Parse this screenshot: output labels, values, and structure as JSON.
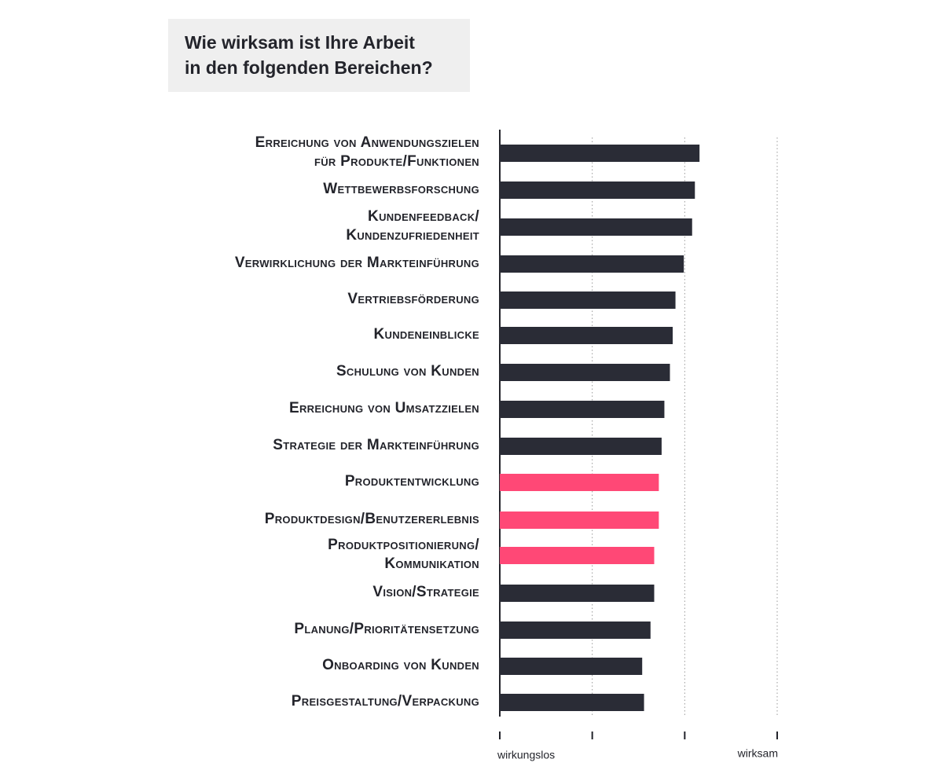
{
  "chart_data": {
    "type": "hbar",
    "title": [
      "Wie wirksam ist Ihre Arbeit",
      "in den folgenden Bereichen?"
    ],
    "categories": [
      [
        "Erreichung von Anwendungszielen",
        "für Produkte/Funktionen"
      ],
      [
        "Wettbewerbsforschung"
      ],
      [
        "Kundenfeedback/",
        "Kundenzufriedenheit"
      ],
      [
        "Verwirklichung der Markteinführung"
      ],
      [
        "Vertriebsförderung"
      ],
      [
        "Kundeneinblicke"
      ],
      [
        "Schulung von Kunden"
      ],
      [
        "Erreichung von Umsatzzielen"
      ],
      [
        "Strategie der Markteinführung"
      ],
      [
        "Produktentwicklung"
      ],
      [
        "Produktdesign/Benutzererlebnis"
      ],
      [
        "Produktpositionierung/",
        "Kommunikation"
      ],
      [
        "Vision/Strategie"
      ],
      [
        "Planung/Prioritätensetzung"
      ],
      [
        "Onboarding von Kunden"
      ],
      [
        "Preisgestaltung/Verpackung"
      ]
    ],
    "values": [
      3.16,
      3.11,
      3.08,
      2.99,
      2.9,
      2.87,
      2.84,
      2.78,
      2.75,
      2.72,
      2.72,
      2.67,
      2.67,
      2.63,
      2.54,
      2.56
    ],
    "colors": [
      "#2a2c36",
      "#2a2c36",
      "#2a2c36",
      "#2a2c36",
      "#2a2c36",
      "#2a2c36",
      "#2a2c36",
      "#2a2c36",
      "#2a2c36",
      "#ff4876",
      "#ff4876",
      "#ff4876",
      "#2a2c36",
      "#2a2c36",
      "#2a2c36",
      "#2a2c36"
    ],
    "xlim": [
      1,
      4
    ],
    "xticks": [
      1,
      2,
      3,
      4
    ],
    "scale_labels": [
      "wirkungslos",
      "wirksam"
    ],
    "grid": true
  }
}
